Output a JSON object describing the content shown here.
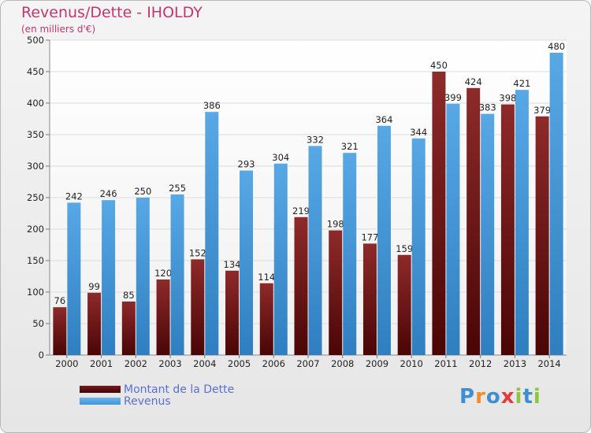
{
  "title": "Revenus/Dette - IHOLDY",
  "subtitle": "(en milliers d'€)",
  "logo": {
    "text": "Proxiti",
    "letters": [
      "P",
      "r",
      "o",
      "x",
      "i",
      "t",
      "i"
    ],
    "colors": [
      "#3d8fd1",
      "#f28c28",
      "#3d8fd1",
      "#e23b3b",
      "#8cc63f",
      "#3d8fd1",
      "#8cc63f"
    ]
  },
  "legend": [
    {
      "label": "Montant de la Dette",
      "color": "#7a1a1a"
    },
    {
      "label": "Revenus",
      "color": "#3d95d8"
    }
  ],
  "chart_data": {
    "type": "bar",
    "categories": [
      "2000",
      "2001",
      "2002",
      "2003",
      "2004",
      "2005",
      "2006",
      "2007",
      "2008",
      "2009",
      "2010",
      "2011",
      "2012",
      "2013",
      "2014"
    ],
    "series": [
      {
        "name": "Montant de la Dette",
        "values": [
          76,
          99,
          85,
          120,
          152,
          134,
          114,
          219,
          198,
          177,
          159,
          450,
          424,
          398,
          379
        ],
        "color": "#7a1a1a"
      },
      {
        "name": "Revenus",
        "values": [
          242,
          246,
          250,
          255,
          386,
          293,
          304,
          332,
          321,
          364,
          344,
          399,
          383,
          421,
          480
        ],
        "color": "#3d95d8"
      }
    ],
    "yticks": [
      0,
      50,
      100,
      150,
      200,
      250,
      300,
      350,
      400,
      450,
      500
    ],
    "ylim": [
      0,
      500
    ],
    "grid": true
  }
}
